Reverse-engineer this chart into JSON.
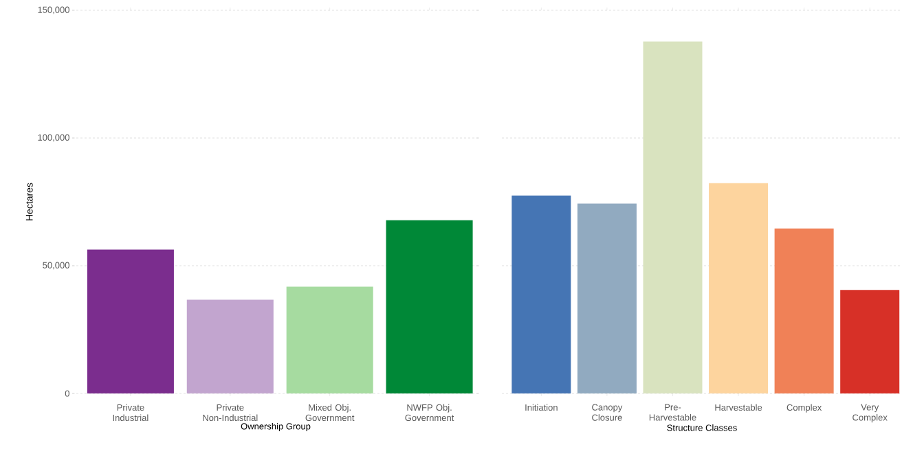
{
  "chart_data": [
    {
      "type": "bar",
      "xlabel": "Ownership Group",
      "ylabel": "Hectares",
      "categories": [
        "Private Industrial",
        "Private Non-Industrial",
        "Mixed Obj. Government",
        "NWFP Obj. Government"
      ],
      "values": [
        56300,
        36700,
        41800,
        67800
      ],
      "colors": [
        "#7b2d8e",
        "#c2a5cf",
        "#a6dba0",
        "#008837"
      ],
      "ylim": [
        0,
        150000
      ],
      "yticks": [
        0,
        {
          "value": 50000,
          "label": "50,000"
        },
        {
          "value": 100000,
          "label": "100,000"
        },
        {
          "value": 150000,
          "label": "150,000"
        }
      ],
      "grid": "y"
    },
    {
      "type": "bar",
      "xlabel": "Structure Classes",
      "categories": [
        "Initiation",
        "Canopy Closure",
        "Pre-Harvestable",
        "Harvestable",
        "Complex",
        "Very Complex"
      ],
      "values": [
        77500,
        74300,
        137800,
        82300,
        64600,
        40500
      ],
      "colors": [
        "#4575b4",
        "#91aac0",
        "#d9e3bf",
        "#fdd49e",
        "#f08157",
        "#d73027"
      ],
      "ylim": [
        0,
        150000
      ],
      "yticks": [
        {
          "value": 0,
          "label": null
        },
        {
          "value": 50000,
          "label": null
        },
        {
          "value": 100000,
          "label": null
        },
        {
          "value": 150000,
          "label": null
        }
      ],
      "grid": "y",
      "tick_labels": "x"
    }
  ]
}
